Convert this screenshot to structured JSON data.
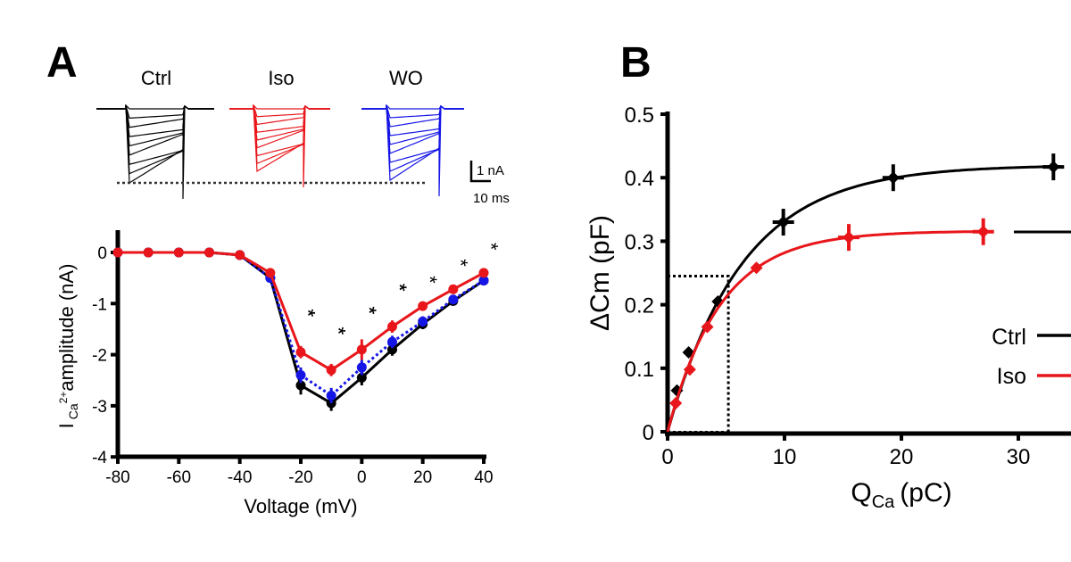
{
  "panel_labels": {
    "a": "A",
    "b": "B"
  },
  "traces": {
    "labels": [
      "Ctrl",
      "Iso",
      "WO"
    ],
    "colors": [
      "#000000",
      "#e8161b",
      "#1515e6"
    ],
    "scale_bar": {
      "current": "1 nA",
      "time": "10 ms"
    }
  },
  "chart_data": [
    {
      "type": "line",
      "title": "",
      "xlabel": "Voltage (mV)",
      "ylabel_main": "I",
      "ylabel_sub": "Ca",
      "ylabel_sup": "2+",
      "ylabel_rest": "amplitude (nA)",
      "xlim": [
        -80,
        40
      ],
      "ylim": [
        -4,
        0.5
      ],
      "xticks": [
        "-80",
        "-60",
        "-40",
        "-20",
        "0",
        "20",
        "40"
      ],
      "xtick_values": [
        -80,
        -60,
        -40,
        -20,
        0,
        20,
        40
      ],
      "yticks": [
        "0",
        "-1",
        "-2",
        "-3",
        "-4"
      ],
      "ytick_values": [
        0,
        -1,
        -2,
        -3,
        -4
      ],
      "x": [
        -80,
        -70,
        -60,
        -50,
        -40,
        -30,
        -20,
        -10,
        0,
        10,
        20,
        30,
        40
      ],
      "series": [
        {
          "name": "Ctrl",
          "color": "#000000",
          "style": "solid",
          "values": [
            0,
            0,
            0,
            0,
            -0.05,
            -0.5,
            -2.6,
            -2.95,
            -2.45,
            -1.9,
            -1.4,
            -0.95,
            -0.55
          ],
          "err": [
            0,
            0,
            0,
            0,
            0.03,
            0.08,
            0.18,
            0.15,
            0.15,
            0.12,
            0.1,
            0.08,
            0.05
          ]
        },
        {
          "name": "WO",
          "color": "#1515e6",
          "style": "dotted",
          "values": [
            0,
            0,
            0,
            0,
            -0.05,
            -0.5,
            -2.4,
            -2.8,
            -2.25,
            -1.75,
            -1.35,
            -0.92,
            -0.55
          ],
          "err": [
            0,
            0,
            0,
            0,
            0.03,
            0.07,
            0.15,
            0.15,
            0.15,
            0.12,
            0.1,
            0.07,
            0.05
          ]
        },
        {
          "name": "Iso",
          "color": "#e8161b",
          "style": "solid",
          "values": [
            0,
            0,
            0,
            0,
            -0.05,
            -0.4,
            -1.95,
            -2.3,
            -1.9,
            -1.45,
            -1.05,
            -0.72,
            -0.4
          ],
          "err": [
            0,
            0,
            0,
            0,
            0.03,
            0.06,
            0.12,
            0.12,
            0.2,
            0.12,
            0.08,
            0.06,
            0.04
          ]
        }
      ],
      "annotations": [
        {
          "x": -20,
          "text": "**"
        },
        {
          "x": -10,
          "text": "**"
        },
        {
          "x": 0,
          "text": "**"
        },
        {
          "x": 10,
          "text": "**"
        },
        {
          "x": 20,
          "text": "*"
        },
        {
          "x": 30,
          "text": "*"
        },
        {
          "x": 40,
          "text": "*"
        }
      ]
    },
    {
      "type": "scatter",
      "title": "",
      "xlabel_main": "Q",
      "xlabel_sub": "Ca",
      "xlabel_rest": "(pC)",
      "ylabel": "ΔCm (pF)",
      "xlim": [
        0,
        35
      ],
      "ylim": [
        0,
        0.5
      ],
      "xticks": [
        "0",
        "10",
        "20",
        "30"
      ],
      "xtick_values": [
        0,
        10,
        20,
        30
      ],
      "yticks": [
        "0",
        "0.1",
        "0.2",
        "0.3",
        "0.4",
        "0.5"
      ],
      "ytick_values": [
        0,
        0.1,
        0.2,
        0.3,
        0.4,
        0.5
      ],
      "series": [
        {
          "name": "Ctrl",
          "color": "#000000",
          "x": [
            0.8,
            1.8,
            4.3,
            9.9,
            19.3,
            33.0
          ],
          "y": [
            0.065,
            0.125,
            0.205,
            0.33,
            0.4,
            0.417
          ],
          "fit": {
            "amplitude": 0.42,
            "tau": 6.4
          }
        },
        {
          "name": "Iso",
          "color": "#e8161b",
          "x": [
            0.7,
            1.9,
            3.4,
            7.6,
            15.5,
            27.0
          ],
          "y": [
            0.045,
            0.098,
            0.165,
            0.258,
            0.306,
            0.315
          ],
          "fit": {
            "amplitude": 0.316,
            "tau": 4.5
          }
        }
      ],
      "guides": {
        "x": 5.2,
        "y": 0.245
      },
      "legend": {
        "placement": "right",
        "entries": [
          "Ctrl",
          "Iso"
        ]
      }
    }
  ]
}
